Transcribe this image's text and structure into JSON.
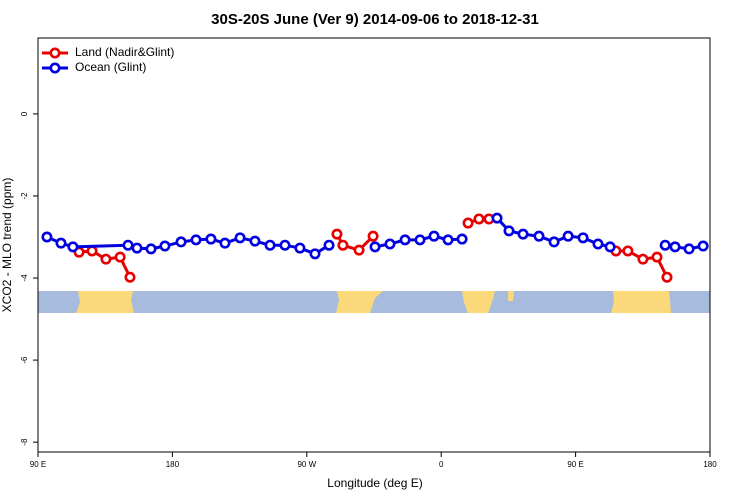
{
  "chart_data": {
    "type": "line",
    "title": "30S-20S June (Ver 9)   2014-09-06 to 2018-12-31",
    "xlabel": "Longitude (deg E)",
    "ylabel": "XCO2 - MLO trend (ppm)",
    "xlim": [
      90,
      540
    ],
    "xticks": [
      {
        "value": 90,
        "label": "90 E"
      },
      {
        "value": 180,
        "label": "180"
      },
      {
        "value": 270,
        "label": "90 W"
      },
      {
        "value": 360,
        "label": "0"
      },
      {
        "value": 450,
        "label": "90 E"
      },
      {
        "value": 540,
        "label": "180"
      }
    ],
    "ylim": [
      -8.24,
      1.85
    ],
    "yticks": [
      0,
      -2,
      -4,
      -6,
      -8
    ],
    "legend": "top-left",
    "series": [
      {
        "name": "Land (Nadir&Glint)",
        "color": "#e80000",
        "x": [
          117.5,
          126.2,
          135.5,
          145,
          151.6,
          null,
          290.2,
          294.2,
          305,
          314.4,
          null,
          378,
          385.3,
          392,
          null,
          477,
          485,
          495.1,
          504.5,
          511.2
        ],
        "values": [
          -3.37,
          -3.34,
          -3.54,
          -3.49,
          -3.98,
          null,
          -2.93,
          -3.2,
          -3.32,
          -2.98,
          null,
          -2.66,
          -2.56,
          -2.56,
          null,
          -3.34,
          -3.34,
          -3.54,
          -3.49,
          -3.98
        ]
      },
      {
        "name": "Ocean (Glint)",
        "color": "#0000e0",
        "x": [
          96,
          105.4,
          113.4,
          150.3,
          156.3,
          165.7,
          175,
          185.8,
          195.8,
          205.8,
          215.2,
          225.3,
          235.3,
          245.4,
          255.4,
          265.4,
          275.5,
          284.9,
          null,
          315.7,
          325.7,
          335.8,
          345.8,
          355.2,
          364.6,
          374,
          null,
          397.4,
          405.4,
          414.8,
          425.5,
          435.6,
          445,
          455,
          465,
          473.1,
          null,
          510,
          516.6,
          526,
          535.4
        ],
        "values": [
          -3.0,
          -3.15,
          -3.24,
          -3.2,
          -3.27,
          -3.29,
          -3.22,
          -3.12,
          -3.07,
          -3.05,
          -3.15,
          -3.02,
          -3.1,
          -3.2,
          -3.2,
          -3.27,
          -3.41,
          -3.2,
          null,
          -3.24,
          -3.17,
          -3.07,
          -3.07,
          -2.98,
          -3.07,
          -3.05,
          null,
          -2.54,
          -2.85,
          -2.93,
          -2.98,
          -3.12,
          -2.98,
          -3.02,
          -3.17,
          -3.24,
          null,
          -3.2,
          -3.24,
          -3.29,
          -3.22
        ]
      }
    ]
  }
}
